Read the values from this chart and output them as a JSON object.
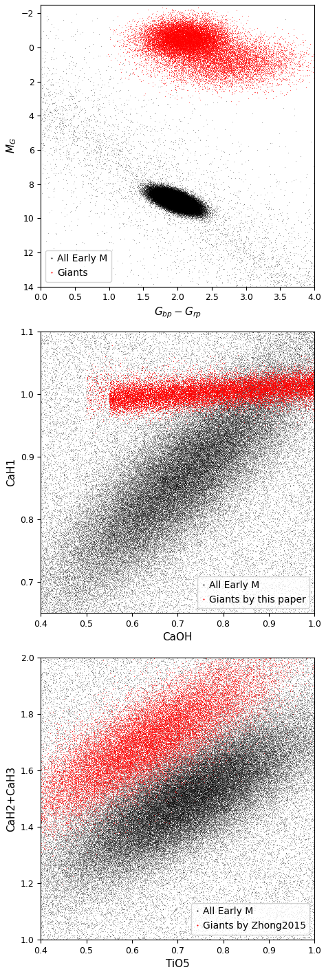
{
  "panel1": {
    "xlabel": "$G_{bp} - G_{rp}$",
    "ylabel": "$M_G$",
    "xlim": [
      0.0,
      4.0
    ],
    "ylim": [
      14,
      -2.5
    ],
    "xticks": [
      0.0,
      0.5,
      1.0,
      1.5,
      2.0,
      2.5,
      3.0,
      3.5,
      4.0
    ],
    "yticks": [
      -2,
      0,
      2,
      4,
      6,
      8,
      10,
      12,
      14
    ],
    "legend_label1": "All Early M",
    "legend_label2": "Giants"
  },
  "panel2": {
    "xlabel": "CaOH",
    "ylabel": "CaH1",
    "xlim": [
      0.4,
      1.0
    ],
    "ylim": [
      0.65,
      1.1
    ],
    "xticks": [
      0.4,
      0.5,
      0.6,
      0.7,
      0.8,
      0.9,
      1.0
    ],
    "yticks": [
      0.7,
      0.8,
      0.9,
      1.0,
      1.1
    ],
    "legend_label1": "All Early M",
    "legend_label2": "Giants by this paper"
  },
  "panel3": {
    "xlabel": "TiO5",
    "ylabel": "CaH2+CaH3",
    "xlim": [
      0.4,
      1.0
    ],
    "ylim": [
      1.0,
      2.0
    ],
    "xticks": [
      0.4,
      0.5,
      0.6,
      0.7,
      0.8,
      0.9,
      1.0
    ],
    "yticks": [
      1.0,
      1.2,
      1.4,
      1.6,
      1.8,
      2.0
    ],
    "legend_label1": "All Early M",
    "legend_label2": "Giants by Zhong2015"
  },
  "dot_size": 0.5,
  "black_color": "#000000",
  "red_color": "#ff0000",
  "bg_color": "#ffffff",
  "font_size": 11,
  "legend_font_size": 10
}
